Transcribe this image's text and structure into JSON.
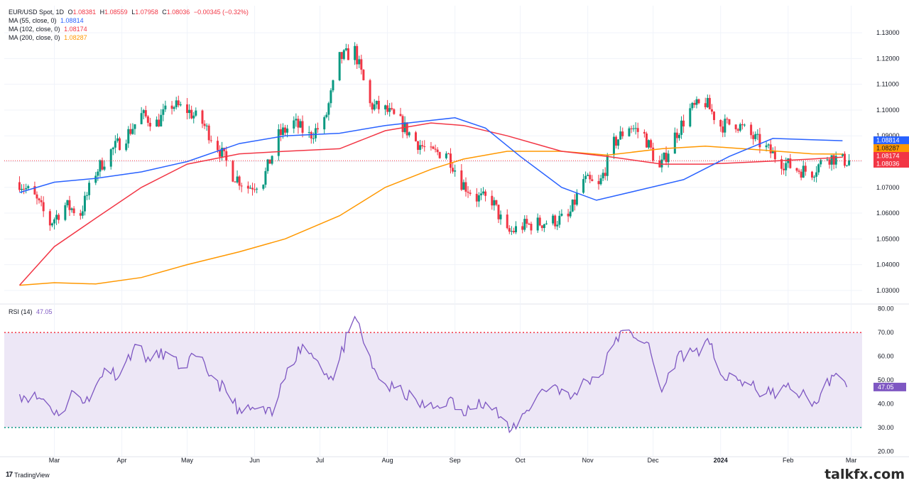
{
  "legend": {
    "symbol": "EUR/USD Spot, 1D",
    "o_label": "O",
    "o_value": "1.08381",
    "h_label": "H",
    "h_value": "1.08559",
    "l_label": "L",
    "l_value": "1.07958",
    "c_label": "C",
    "c_value": "1.08036",
    "change": "−0.00345 (−0.32%)",
    "ma55_label": "MA (55, close, 0)",
    "ma55_value": "1.08814",
    "ma102_label": "MA (102, close, 0)",
    "ma102_value": "1.08174",
    "ma200_label": "MA (200, close, 0)",
    "ma200_value": "1.08287",
    "rsi_label": "RSI (14)",
    "rsi_value": "47.05"
  },
  "footer": {
    "brand": "TradingView",
    "watermark": "talkfx.com"
  },
  "colors": {
    "up": "#089981",
    "down": "#f23645",
    "ma55": "#2962ff",
    "ma102": "#f23645",
    "ma200": "#ff9800",
    "rsi": "#7e57c2",
    "rsi_band": "#ede7f6",
    "ob": "#f23645",
    "os": "#089981"
  },
  "chart_data": [
    {
      "type": "candlestick",
      "title": "EUR/USD Spot, 1D",
      "y_ticks": [
        "1.13000",
        "1.12000",
        "1.11000",
        "1.10000",
        "1.09000",
        "1.08000",
        "1.07000",
        "1.06000",
        "1.05000",
        "1.04000",
        "1.03000"
      ],
      "ylim": [
        1.025,
        1.135
      ],
      "x_ticks": [
        "Mar",
        "Apr",
        "May",
        "Jun",
        "Jul",
        "Aug",
        "Sep",
        "Oct",
        "Nov",
        "Dec",
        "2024",
        "Feb",
        "Mar"
      ],
      "price_labels": [
        {
          "name": "MA (55, close, 0)",
          "value": "1.08814"
        },
        {
          "name": "MA (200, close, 0)",
          "value": "1.08287"
        },
        {
          "name": "MA (102, close, 0)",
          "value": "1.08174"
        },
        {
          "name": "Close",
          "value": "1.08036"
        }
      ],
      "close_path": [
        [
          "2023-02-13",
          1.072
        ],
        [
          "2023-02-20",
          1.066
        ],
        [
          "2023-02-27",
          1.056
        ],
        [
          "2023-03-06",
          1.063
        ],
        [
          "2023-03-13",
          1.06
        ],
        [
          "2023-03-20",
          1.076
        ],
        [
          "2023-03-27",
          1.084
        ],
        [
          "2023-04-03",
          1.09
        ],
        [
          "2023-04-10",
          1.098
        ],
        [
          "2023-04-17",
          1.095
        ],
        [
          "2023-04-24",
          1.102
        ],
        [
          "2023-05-01",
          1.1
        ],
        [
          "2023-05-08",
          1.095
        ],
        [
          "2023-05-15",
          1.086
        ],
        [
          "2023-05-22",
          1.075
        ],
        [
          "2023-05-29",
          1.07
        ],
        [
          "2023-06-05",
          1.073
        ],
        [
          "2023-06-12",
          1.09
        ],
        [
          "2023-06-19",
          1.095
        ],
        [
          "2023-06-26",
          1.09
        ],
        [
          "2023-07-03",
          1.095
        ],
        [
          "2023-07-10",
          1.12
        ],
        [
          "2023-07-17",
          1.123
        ],
        [
          "2023-07-24",
          1.102
        ],
        [
          "2023-07-31",
          1.1
        ],
        [
          "2023-08-07",
          1.095
        ],
        [
          "2023-08-14",
          1.088
        ],
        [
          "2023-08-21",
          1.083
        ],
        [
          "2023-08-28",
          1.084
        ],
        [
          "2023-09-04",
          1.072
        ],
        [
          "2023-09-11",
          1.066
        ],
        [
          "2023-09-18",
          1.065
        ],
        [
          "2023-09-25",
          1.052
        ],
        [
          "2023-10-02",
          1.055
        ],
        [
          "2023-10-09",
          1.056
        ],
        [
          "2023-10-16",
          1.057
        ],
        [
          "2023-10-23",
          1.058
        ],
        [
          "2023-10-30",
          1.073
        ],
        [
          "2023-11-06",
          1.07
        ],
        [
          "2023-11-13",
          1.087
        ],
        [
          "2023-11-20",
          1.094
        ],
        [
          "2023-11-27",
          1.09
        ],
        [
          "2023-12-04",
          1.077
        ],
        [
          "2023-12-11",
          1.09
        ],
        [
          "2023-12-18",
          1.1
        ],
        [
          "2023-12-25",
          1.103
        ],
        [
          "2024-01-01",
          1.094
        ],
        [
          "2024-01-08",
          1.095
        ],
        [
          "2024-01-15",
          1.09
        ],
        [
          "2024-01-22",
          1.085
        ],
        [
          "2024-01-29",
          1.08
        ],
        [
          "2024-02-05",
          1.077
        ],
        [
          "2024-02-12",
          1.076
        ],
        [
          "2024-02-19",
          1.082
        ],
        [
          "2024-02-26",
          1.0804
        ]
      ],
      "ma55": [
        [
          "2023-02-13",
          1.068
        ],
        [
          "2023-03-01",
          1.072
        ],
        [
          "2023-03-20",
          1.0735
        ],
        [
          "2023-04-10",
          1.076
        ],
        [
          "2023-05-01",
          1.08
        ],
        [
          "2023-05-25",
          1.087
        ],
        [
          "2023-06-15",
          1.09
        ],
        [
          "2023-07-10",
          1.091
        ],
        [
          "2023-07-31",
          1.094
        ],
        [
          "2023-08-21",
          1.096
        ],
        [
          "2023-09-01",
          1.097
        ],
        [
          "2023-09-15",
          1.093
        ],
        [
          "2023-10-01",
          1.082
        ],
        [
          "2023-10-20",
          1.07
        ],
        [
          "2023-11-05",
          1.065
        ],
        [
          "2023-11-25",
          1.069
        ],
        [
          "2023-12-15",
          1.073
        ],
        [
          "2024-01-05",
          1.082
        ],
        [
          "2024-01-25",
          1.089
        ],
        [
          "2024-02-12",
          1.0885
        ],
        [
          "2024-02-26",
          1.0881
        ]
      ],
      "ma102": [
        [
          "2023-02-13",
          1.032
        ],
        [
          "2023-03-01",
          1.047
        ],
        [
          "2023-03-20",
          1.058
        ],
        [
          "2023-04-10",
          1.07
        ],
        [
          "2023-05-01",
          1.079
        ],
        [
          "2023-05-25",
          1.083
        ],
        [
          "2023-06-15",
          1.084
        ],
        [
          "2023-07-10",
          1.085
        ],
        [
          "2023-07-31",
          1.092
        ],
        [
          "2023-08-21",
          1.095
        ],
        [
          "2023-09-05",
          1.094
        ],
        [
          "2023-09-25",
          1.09
        ],
        [
          "2023-10-20",
          1.084
        ],
        [
          "2023-11-10",
          1.082
        ],
        [
          "2023-12-05",
          1.079
        ],
        [
          "2023-12-25",
          1.079
        ],
        [
          "2024-01-20",
          1.08
        ],
        [
          "2024-02-12",
          1.081
        ],
        [
          "2024-02-26",
          1.0817
        ]
      ],
      "ma200": [
        [
          "2023-02-13",
          1.032
        ],
        [
          "2023-03-01",
          1.033
        ],
        [
          "2023-03-20",
          1.0325
        ],
        [
          "2023-04-10",
          1.035
        ],
        [
          "2023-05-01",
          1.04
        ],
        [
          "2023-05-25",
          1.045
        ],
        [
          "2023-06-15",
          1.05
        ],
        [
          "2023-07-10",
          1.059
        ],
        [
          "2023-07-31",
          1.07
        ],
        [
          "2023-08-21",
          1.077
        ],
        [
          "2023-09-05",
          1.081
        ],
        [
          "2023-09-25",
          1.084
        ],
        [
          "2023-10-20",
          1.084
        ],
        [
          "2023-11-10",
          1.0825
        ],
        [
          "2023-12-05",
          1.085
        ],
        [
          "2023-12-25",
          1.086
        ],
        [
          "2024-01-20",
          1.0845
        ],
        [
          "2024-02-12",
          1.083
        ],
        [
          "2024-02-26",
          1.0829
        ]
      ]
    },
    {
      "type": "line",
      "title": "RSI (14)",
      "y_ticks": [
        "80.00",
        "70.00",
        "60.00",
        "50.00",
        "40.00",
        "30.00",
        "20.00"
      ],
      "ylim": [
        18,
        82
      ],
      "overbought": 70,
      "oversold": 30,
      "last_value": "47.05",
      "x": [
        "2023-02-13",
        "2023-02-24",
        "2023-03-03",
        "2023-03-10",
        "2023-03-17",
        "2023-03-24",
        "2023-03-31",
        "2023-04-07",
        "2023-04-14",
        "2023-04-21",
        "2023-04-28",
        "2023-05-05",
        "2023-05-12",
        "2023-05-19",
        "2023-05-26",
        "2023-06-02",
        "2023-06-09",
        "2023-06-16",
        "2023-06-23",
        "2023-06-30",
        "2023-07-07",
        "2023-07-14",
        "2023-07-18",
        "2023-07-25",
        "2023-08-01",
        "2023-08-08",
        "2023-08-15",
        "2023-08-22",
        "2023-08-29",
        "2023-09-05",
        "2023-09-12",
        "2023-09-19",
        "2023-09-26",
        "2023-10-03",
        "2023-10-10",
        "2023-10-17",
        "2023-10-24",
        "2023-10-31",
        "2023-11-07",
        "2023-11-14",
        "2023-11-21",
        "2023-11-28",
        "2023-12-05",
        "2023-12-12",
        "2023-12-19",
        "2023-12-27",
        "2024-01-03",
        "2024-01-10",
        "2024-01-17",
        "2024-01-24",
        "2024-01-31",
        "2024-02-07",
        "2024-02-14",
        "2024-02-21",
        "2024-02-28"
      ],
      "values": [
        44,
        42,
        35,
        45,
        41,
        55,
        52,
        65,
        58,
        62,
        55,
        60,
        52,
        45,
        36,
        38,
        35,
        55,
        65,
        58,
        50,
        70,
        75,
        55,
        47,
        45,
        40,
        38,
        42,
        35,
        42,
        38,
        28,
        36,
        45,
        48,
        42,
        50,
        52,
        68,
        70,
        66,
        45,
        60,
        62,
        65,
        50,
        50,
        46,
        44,
        47,
        44,
        40,
        52,
        47
      ]
    }
  ]
}
